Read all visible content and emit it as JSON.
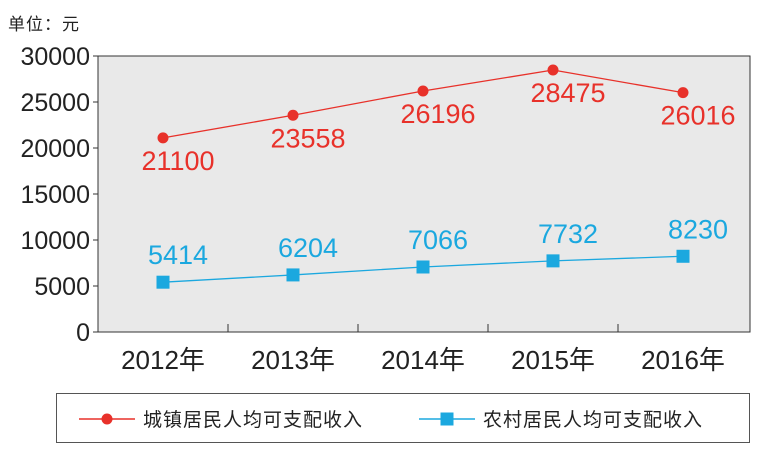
{
  "unit_label": "单位：元",
  "chart_data": {
    "type": "line",
    "categories": [
      "2012年",
      "2013年",
      "2014年",
      "2015年",
      "2016年"
    ],
    "ylim": [
      0,
      30000
    ],
    "yticks": [
      "0",
      "5000",
      "10000",
      "15000",
      "20000",
      "25000",
      "30000"
    ],
    "grid": false,
    "legend_position": "bottom",
    "series": [
      {
        "name": "城镇居民人均可支配收入",
        "values": [
          21100,
          23558,
          26196,
          28475,
          26016
        ],
        "color": "#e8312a",
        "marker": "circle",
        "label_position": "below"
      },
      {
        "name": "农村居民人均可支配收入",
        "values": [
          5414,
          6204,
          7066,
          7732,
          8230
        ],
        "color": "#1ba8df",
        "marker": "square",
        "label_position": "above"
      }
    ],
    "data_labels": [
      [
        "21100",
        "23558",
        "26196",
        "28475",
        "26016"
      ],
      [
        "5414",
        "6204",
        "7066",
        "7732",
        "8230"
      ]
    ]
  },
  "colors": {
    "plot_background": "#e9e9e9",
    "axis": "#333333",
    "text": "#222222"
  }
}
